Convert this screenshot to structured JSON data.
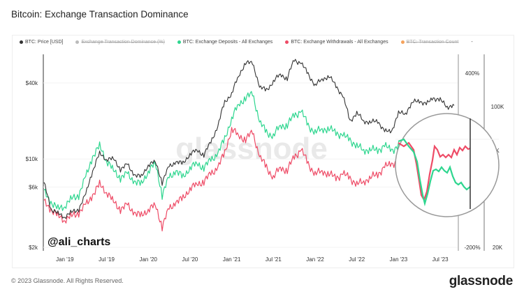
{
  "title": "Bitcoin: Exchange Transaction Dominance",
  "footer": "© 2023 Glassnode. All Rights Reserved.",
  "logo": "glassnode",
  "watermark": "glassnode",
  "author_tag": "@ali_charts",
  "legend": [
    {
      "label": "BTC: Price [USD]",
      "color": "#333333",
      "active": true
    },
    {
      "label": "Exchange Transaction Dominance (%)",
      "color": "#bbbbbb",
      "active": false
    },
    {
      "label": "BTC: Exchange Deposits - All Exchanges",
      "color": "#2ed68f",
      "active": true
    },
    {
      "label": "BTC: Exchange Withdrawals - All Exchanges",
      "color": "#ee4b66",
      "active": true
    },
    {
      "label": "BTC: Transaction Count",
      "color": "#f5a35c",
      "active": false
    },
    {
      "label": "-",
      "color": "",
      "active": true
    }
  ],
  "chart_data": {
    "type": "line",
    "x": [
      "2018-10",
      "2018-11",
      "2018-12",
      "2019-01",
      "2019-02",
      "2019-03",
      "2019-04",
      "2019-05",
      "2019-06",
      "2019-07",
      "2019-08",
      "2019-09",
      "2019-10",
      "2019-11",
      "2019-12",
      "2020-01",
      "2020-02",
      "2020-03",
      "2020-04",
      "2020-05",
      "2020-06",
      "2020-07",
      "2020-08",
      "2020-09",
      "2020-10",
      "2020-11",
      "2020-12",
      "2021-01",
      "2021-02",
      "2021-03",
      "2021-04",
      "2021-05",
      "2021-06",
      "2021-07",
      "2021-08",
      "2021-09",
      "2021-10",
      "2021-11",
      "2021-12",
      "2022-01",
      "2022-02",
      "2022-03",
      "2022-04",
      "2022-05",
      "2022-06",
      "2022-07",
      "2022-08",
      "2022-09",
      "2022-10",
      "2022-11",
      "2022-12",
      "2023-01",
      "2023-02",
      "2023-03",
      "2023-04",
      "2023-05",
      "2023-06",
      "2023-07",
      "2023-08",
      "2023-09"
    ],
    "x_ticks": [
      "Jan '19",
      "Jul '19",
      "Jan '20",
      "Jul '20",
      "Jan '21",
      "Jul '21",
      "Jan '22",
      "Jul '22",
      "Jan '23",
      "Jul '23"
    ],
    "y_left": {
      "scale": "log",
      "ticks": [
        "$2k",
        "$6k",
        "$10k",
        "$40k"
      ],
      "tick_values": [
        2000,
        6000,
        10000,
        40000
      ]
    },
    "y_right_pct": {
      "ticks": [
        "400%",
        "-200%"
      ]
    },
    "y_right": {
      "scale": "log",
      "ticks": [
        "100K",
        "K",
        "20K"
      ],
      "range": [
        20,
        100
      ]
    },
    "series": [
      {
        "name": "BTC: Price [USD]",
        "color": "#333333",
        "axis": "left",
        "values": [
          6400,
          4000,
          3700,
          3500,
          3800,
          4000,
          5200,
          8000,
          11000,
          10000,
          10000,
          8300,
          9000,
          7500,
          7200,
          9000,
          9500,
          6500,
          8700,
          9500,
          9200,
          11000,
          11700,
          10800,
          13500,
          18000,
          28000,
          33000,
          45000,
          58000,
          57000,
          37000,
          35000,
          41000,
          47000,
          43000,
          61000,
          57000,
          47000,
          38000,
          43000,
          45000,
          38000,
          31000,
          20000,
          23000,
          20000,
          19500,
          20000,
          16500,
          16500,
          23000,
          23000,
          28000,
          29000,
          27000,
          30500,
          29200,
          26000,
          26500
        ]
      },
      {
        "name": "BTC: Exchange Deposits - All Exchanges",
        "color": "#2ed68f",
        "axis": "right",
        "values": [
          37.8,
          33.6,
          31.0,
          32.3,
          34.9,
          36.4,
          44.4,
          56.4,
          63.5,
          54.1,
          48.0,
          44.4,
          46.2,
          42.6,
          41.0,
          48.0,
          52.0,
          36.4,
          44.4,
          48.0,
          44.4,
          50.0,
          52.0,
          50.0,
          54.1,
          58.6,
          68.8,
          87.3,
          102.4,
          110.9,
          115.4,
          83.9,
          74.5,
          71.6,
          80.6,
          80.6,
          90.9,
          94.6,
          80.6,
          74.5,
          77.5,
          77.5,
          74.5,
          71.6,
          68.8,
          63.5,
          61.0,
          61.0,
          61.0,
          63.5,
          61.0,
          63.5,
          58.6,
          56.4,
          54.1,
          50.0,
          48.0,
          48.0,
          46.2,
          44.4
        ]
      },
      {
        "name": "BTC: Exchange Withdrawals - All Exchanges",
        "color": "#ee4b66",
        "axis": "right",
        "values": [
          33.6,
          31.0,
          28.6,
          27.5,
          28.6,
          29.8,
          32.3,
          36.4,
          41.0,
          37.8,
          33.6,
          31.0,
          32.3,
          29.8,
          28.6,
          31.0,
          32.3,
          25.4,
          31.0,
          33.6,
          34.9,
          39.4,
          41.0,
          42.6,
          46.2,
          50.0,
          58.6,
          77.5,
          71.6,
          68.8,
          74.5,
          56.4,
          50.0,
          44.4,
          50.0,
          48.0,
          56.4,
          61.0,
          52.0,
          46.2,
          48.0,
          46.2,
          44.4,
          46.2,
          44.4,
          41.0,
          42.6,
          44.4,
          46.2,
          50.0,
          52.0,
          54.1,
          56.4,
          58.6,
          61.0,
          63.5,
          61.0,
          62.5,
          63.5,
          64.5
        ]
      }
    ],
    "grid": true,
    "legend_position": "top"
  }
}
